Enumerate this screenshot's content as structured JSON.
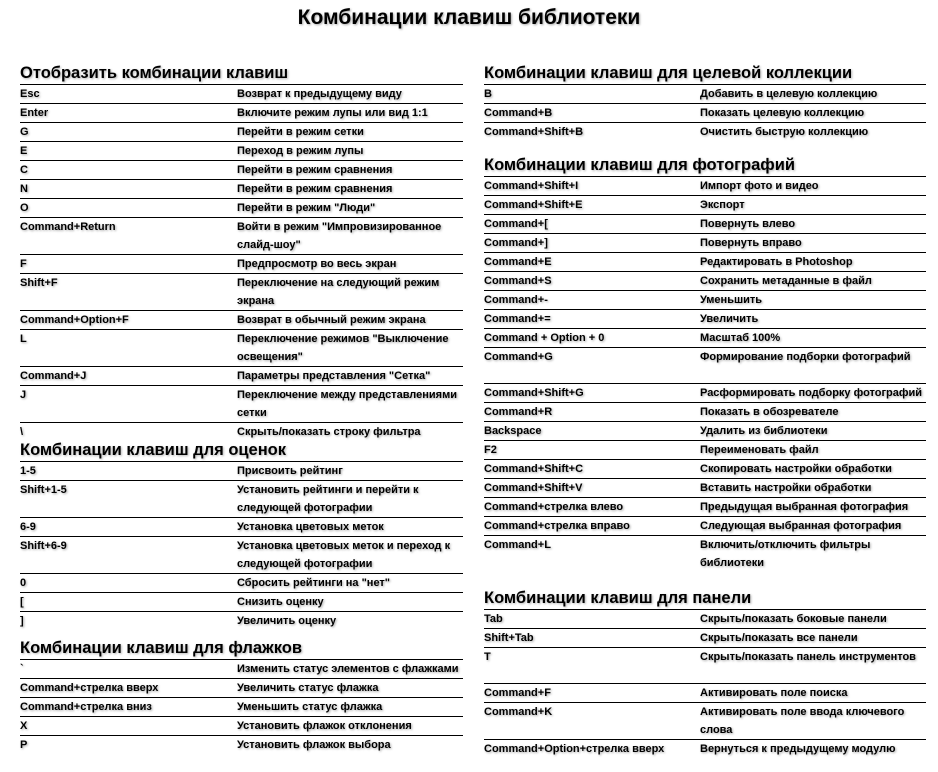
{
  "title": "Комбинации клавиш библиотеки",
  "sections": [
    {
      "heading": "Отобразить комбинации клавиш",
      "rows": [
        {
          "key": "Esc",
          "desc": "Возврат к предыдущему виду"
        },
        {
          "key": "Enter",
          "desc": "Включите режим лупы или вид 1:1"
        },
        {
          "key": "G",
          "desc": "Перейти в режим сетки"
        },
        {
          "key": "E",
          "desc": "Переход в режим лупы"
        },
        {
          "key": "C",
          "desc": "Перейти в режим сравнения"
        },
        {
          "key": "N",
          "desc": "Перейти в режим сравнения"
        },
        {
          "key": "O",
          "desc": "Перейти в режим \"Люди\""
        },
        {
          "key": "Command+Return",
          "desc": "Войти в режим \"Импровизированное слайд-шоу\""
        },
        {
          "key": "F",
          "desc": "Предпросмотр во весь экран"
        },
        {
          "key": "Shift+F",
          "desc": "Переключение на следующий режим экрана"
        },
        {
          "key": "Command+Option+F",
          "desc": "Возврат в обычный режим экрана"
        },
        {
          "key": "L",
          "desc": "Переключение режимов \"Выключение освещения\""
        },
        {
          "key": "Command+J",
          "desc": "Параметры представления \"Сетка\""
        },
        {
          "key": "J",
          "desc": "Переключение между представлениями сетки"
        },
        {
          "key": "\\",
          "desc": "Скрыть/показать строку фильтра"
        }
      ]
    },
    {
      "heading": "Комбинации клавиш для оценок",
      "rows": [
        {
          "key": "1-5",
          "desc": "Присвоить рейтинг"
        },
        {
          "key": "Shift+1-5",
          "desc": "Установить рейтинги и перейти к следующей фотографии"
        },
        {
          "key": "6-9",
          "desc": "Установка цветовых меток"
        },
        {
          "key": "Shift+6-9",
          "desc": "Установка цветовых меток и переход к следующей фотографии"
        },
        {
          "key": "0",
          "desc": "Сбросить рейтинги на \"нет\""
        },
        {
          "key": "[",
          "desc": "Снизить оценку"
        },
        {
          "key": "]",
          "desc": "Увеличить оценку"
        }
      ]
    },
    {
      "heading": "Комбинации клавиш для флажков",
      "rows": [
        {
          "key": "`",
          "desc": "Изменить статус элементов с флажками"
        },
        {
          "key": "Command+стрелка вверх",
          "desc": "Увеличить статус флажка"
        },
        {
          "key": "Command+стрелка вниз",
          "desc": "Уменьшить статус флажка"
        },
        {
          "key": "X",
          "desc": "Установить флажок отклонения"
        },
        {
          "key": "P",
          "desc": "Установить флажок выбора"
        }
      ]
    },
    {
      "heading": "Комбинации клавиш для целевой коллекции",
      "rows": [
        {
          "key": "B",
          "desc": "Добавить в целевую коллекцию"
        },
        {
          "key": "Command+B",
          "desc": "Показать целевую коллекцию"
        },
        {
          "key": "Command+Shift+B",
          "desc": "Очистить быструю коллекцию"
        }
      ]
    },
    {
      "heading": "Комбинации клавиш для фотографий",
      "rows": [
        {
          "key": "Command+Shift+I",
          "desc": "Импорт фото и видео"
        },
        {
          "key": "Command+Shift+E",
          "desc": "Экспорт"
        },
        {
          "key": "Command+[",
          "desc": "Повернуть влево"
        },
        {
          "key": "Command+]",
          "desc": "Повернуть вправо"
        },
        {
          "key": "Command+E",
          "desc": "Редактировать в Photoshop"
        },
        {
          "key": "Command+S",
          "desc": "Сохранить метаданные в файл"
        },
        {
          "key": "Command+-",
          "desc": "Уменьшить"
        },
        {
          "key": "Command+=",
          "desc": "Увеличить"
        },
        {
          "key": "Command + Option + 0",
          "desc": "Масштаб 100%"
        },
        {
          "key": "Command+G",
          "desc": "Формирование подборки фотографий"
        },
        {
          "key": "Command+Shift+G",
          "desc": "Расформировать подборку фотографий"
        },
        {
          "key": "Command+R",
          "desc": "Показать в обозревателе"
        },
        {
          "key": "Backspace",
          "desc": "Удалить из библиотеки"
        },
        {
          "key": "F2",
          "desc": "Переименовать файл"
        },
        {
          "key": "Command+Shift+C",
          "desc": "Скопировать настройки обработки"
        },
        {
          "key": "Command+Shift+V",
          "desc": "Вставить настройки обработки"
        },
        {
          "key": "Command+стрелка влево",
          "desc": "Предыдущая выбранная фотография"
        },
        {
          "key": "Command+стрелка вправо",
          "desc": "Следующая выбранная фотография"
        },
        {
          "key": "Command+L",
          "desc": "Включить/отключить фильтры библиотеки"
        }
      ]
    },
    {
      "heading": "Комбинации клавиш для панели",
      "rows": [
        {
          "key": "Tab",
          "desc": "Скрыть/показать боковые панели"
        },
        {
          "key": "Shift+Tab",
          "desc": "Скрыть/показать все панели"
        },
        {
          "key": "T",
          "desc": "Скрыть/показать панель инструментов"
        },
        {
          "key": "Command+F",
          "desc": "Активировать поле поиска"
        },
        {
          "key": "Command+K",
          "desc": "Активировать поле ввода ключевого слова"
        },
        {
          "key": "Command+Option+стрелка вверх",
          "desc": "Вернуться к предыдущему модулю"
        }
      ]
    }
  ]
}
